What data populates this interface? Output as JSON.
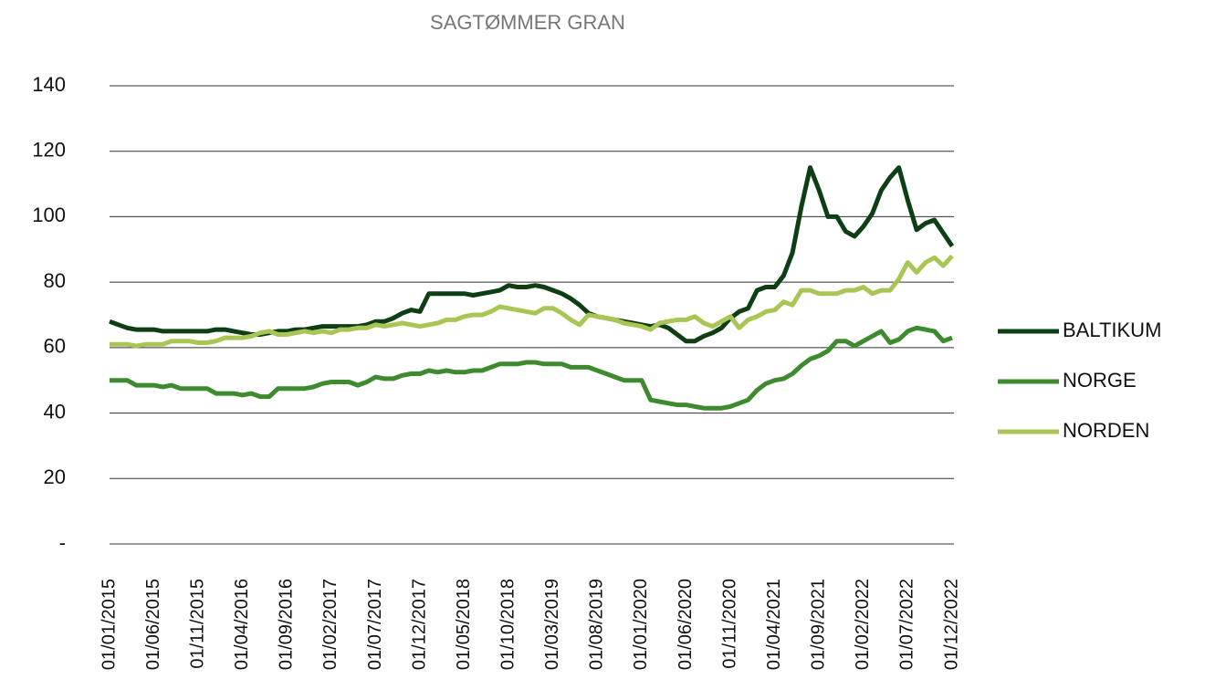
{
  "chart_data": {
    "type": "line",
    "title": "SAGTØMMER GRAN",
    "categories": [
      "01/01/2015",
      null,
      null,
      null,
      null,
      "01/06/2015",
      null,
      null,
      null,
      null,
      "01/11/2015",
      null,
      null,
      null,
      null,
      "01/04/2016",
      null,
      null,
      null,
      null,
      "01/09/2016",
      null,
      null,
      null,
      null,
      "01/02/2017",
      null,
      null,
      null,
      null,
      "01/07/2017",
      null,
      null,
      null,
      null,
      "01/12/2017",
      null,
      null,
      null,
      null,
      "01/05/2018",
      null,
      null,
      null,
      null,
      "01/10/2018",
      null,
      null,
      null,
      null,
      "01/03/2019",
      null,
      null,
      null,
      null,
      "01/08/2019",
      null,
      null,
      null,
      null,
      "01/01/2020",
      null,
      null,
      null,
      null,
      "01/06/2020",
      null,
      null,
      null,
      null,
      "01/11/2020",
      null,
      null,
      null,
      null,
      "01/04/2021",
      null,
      null,
      null,
      null,
      "01/09/2021",
      null,
      null,
      null,
      null,
      "01/02/2022",
      null,
      null,
      null,
      null,
      "01/07/2022",
      null,
      null,
      null,
      null,
      "01/12/2022"
    ],
    "series": [
      {
        "name": "BALTIKUM",
        "color": "#0e3f14",
        "values": [
          68,
          67,
          66,
          65.5,
          65.5,
          65.5,
          65,
          65,
          65,
          65,
          65,
          65,
          65.5,
          65.5,
          65,
          64.5,
          64,
          64,
          64.5,
          65,
          65,
          65.5,
          65.5,
          66,
          66.5,
          66.5,
          66.5,
          66.5,
          66.5,
          67,
          68,
          68,
          69,
          70.5,
          71.5,
          71,
          76.5,
          76.5,
          76.5,
          76.5,
          76.5,
          76,
          76.5,
          77,
          77.5,
          79,
          78.5,
          78.5,
          79,
          78.5,
          77.5,
          76.5,
          75,
          73,
          70.5,
          69.5,
          69,
          68.5,
          68,
          67.5,
          67,
          66.5,
          67,
          66,
          64,
          62,
          62,
          63.5,
          64.5,
          66,
          69,
          71,
          72,
          77.5,
          78.5,
          78.5,
          82,
          89,
          103,
          115,
          108,
          100,
          100,
          95.5,
          94,
          97,
          101,
          108,
          112,
          115,
          105,
          96,
          98,
          99,
          95,
          91
        ]
      },
      {
        "name": "NORGE",
        "color": "#3e8b2f",
        "values": [
          50,
          50,
          50,
          48.5,
          48.5,
          48.5,
          48,
          48.5,
          47.5,
          47.5,
          47.5,
          47.5,
          46,
          46,
          46,
          45.5,
          46,
          45,
          45,
          47.5,
          47.5,
          47.5,
          47.5,
          48,
          49,
          49.5,
          49.5,
          49.5,
          48.5,
          49.5,
          51,
          50.5,
          50.5,
          51.5,
          52,
          52,
          53,
          52.5,
          53,
          52.5,
          52.5,
          53,
          53,
          54,
          55,
          55,
          55,
          55.5,
          55.5,
          55,
          55,
          55,
          54,
          54,
          54,
          53,
          52,
          51,
          50,
          50,
          50,
          44,
          43.5,
          43,
          42.5,
          42.5,
          42,
          41.5,
          41.5,
          41.5,
          42,
          43,
          44,
          47,
          49,
          50,
          50.5,
          52,
          54.5,
          56.5,
          57.5,
          59,
          62,
          62,
          60.5,
          62,
          63.5,
          65,
          61.5,
          62.5,
          65,
          66,
          65.5,
          65,
          62,
          63
        ]
      },
      {
        "name": "NORDEN",
        "color": "#a9c553",
        "values": [
          61,
          61,
          61,
          60.5,
          61,
          61,
          61,
          62,
          62,
          62,
          61.5,
          61.5,
          62,
          63,
          63,
          63,
          63.5,
          64.5,
          65,
          64,
          64,
          64.5,
          65,
          64.5,
          65,
          64.5,
          65.5,
          65.5,
          66,
          66,
          67,
          66.5,
          67,
          67.5,
          67,
          66.5,
          67,
          67.5,
          68.5,
          68.5,
          69.5,
          70,
          70,
          71,
          72.5,
          72,
          71.5,
          71,
          70.5,
          72,
          72,
          70.5,
          68.5,
          67,
          70,
          69.5,
          69,
          68.5,
          67.5,
          67,
          66.5,
          65.5,
          67.5,
          68,
          68.5,
          68.5,
          69.5,
          67.5,
          66.5,
          68,
          69.5,
          66,
          68.5,
          69.5,
          71,
          71.5,
          74,
          73,
          77.5,
          77.5,
          76.5,
          76.5,
          76.5,
          77.5,
          77.5,
          78.5,
          76.5,
          77.5,
          77.5,
          81,
          86,
          83,
          86,
          87.5,
          85,
          88
        ]
      }
    ],
    "ylim": [
      0,
      140
    ],
    "yticks": [
      {
        "value": 0,
        "label": "-"
      },
      20,
      40,
      60,
      80,
      100,
      120,
      140
    ],
    "grid": true,
    "legend": "right"
  }
}
